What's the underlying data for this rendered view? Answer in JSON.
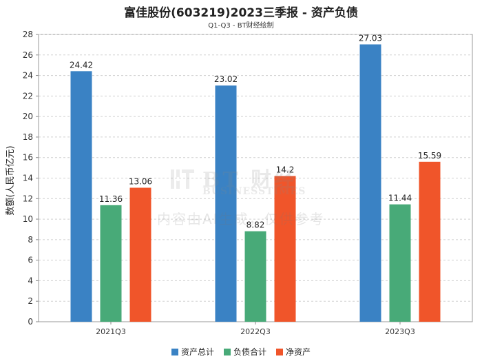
{
  "title": "富佳股份(603219)2023三季报 - 资产负债",
  "subtitle": "Q1-Q3 - BT财经绘制",
  "watermark": {
    "logo_text": "BT 财经",
    "logo_sub": "BUSINESSTIMES",
    "note": "内容由AI生成，仅供参考"
  },
  "chart_data": {
    "type": "bar",
    "title": "富佳股份(603219)2023三季报 - 资产负债",
    "subtitle": "Q1-Q3 - BT财经绘制",
    "xlabel": "",
    "ylabel": "数额(人民币亿元)",
    "ylim": [
      0,
      28
    ],
    "yticks": [
      0,
      2,
      4,
      6,
      8,
      10,
      12,
      14,
      16,
      18,
      20,
      22,
      24,
      26,
      28
    ],
    "grid": true,
    "legend_position": "bottom",
    "categories": [
      "2021Q3",
      "2022Q3",
      "2023Q3"
    ],
    "series": [
      {
        "name": "资产总计",
        "color": "#3a82c4",
        "values": [
          24.42,
          23.02,
          27.03
        ],
        "labels": [
          "24.42",
          "23.02",
          "27.03"
        ]
      },
      {
        "name": "负债合计",
        "color": "#48aa78",
        "values": [
          11.36,
          8.82,
          11.44
        ],
        "labels": [
          "11.36",
          "8.82",
          "11.44"
        ]
      },
      {
        "name": "净资产",
        "color": "#f0552a",
        "values": [
          13.06,
          14.2,
          15.59
        ],
        "labels": [
          "13.06",
          "14.2",
          "15.59"
        ]
      }
    ]
  }
}
